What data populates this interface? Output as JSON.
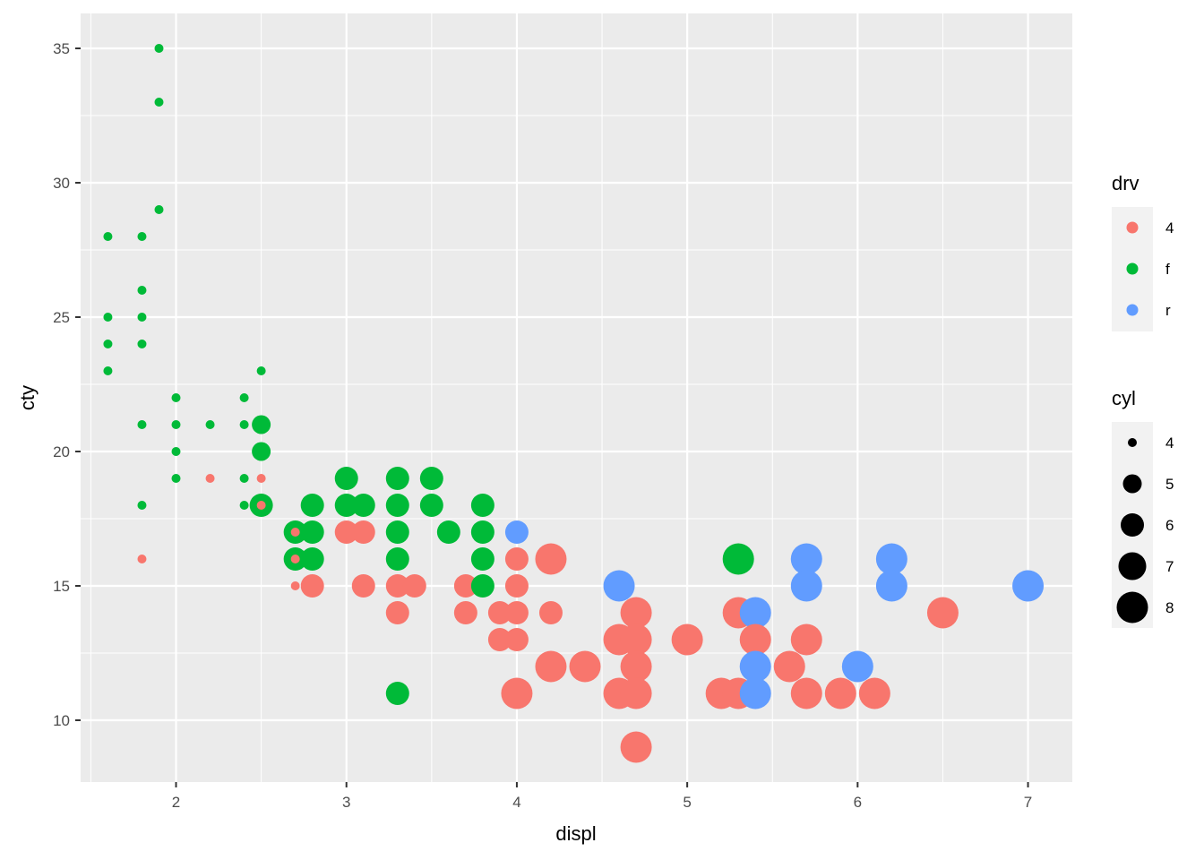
{
  "chart_data": {
    "type": "scatter",
    "xlabel": "displ",
    "ylabel": "cty",
    "xlim": [
      1.44,
      7.26
    ],
    "ylim": [
      7.7,
      36.3
    ],
    "x_ticks": [
      2,
      3,
      4,
      5,
      6,
      7
    ],
    "y_ticks": [
      10,
      15,
      20,
      25,
      30,
      35
    ],
    "x_tick_labels": [
      "2",
      "3",
      "4",
      "5",
      "6",
      "7"
    ],
    "y_tick_labels": [
      "10",
      "15",
      "20",
      "25",
      "30",
      "35"
    ],
    "grid": true,
    "panel_background": "#ebebeb",
    "legend_position": "right",
    "color": {
      "title": "drv",
      "levels": [
        {
          "label": "4",
          "color": "#F8766D"
        },
        {
          "label": "f",
          "color": "#00BA38"
        },
        {
          "label": "r",
          "color": "#619CFF"
        }
      ]
    },
    "size": {
      "title": "cyl",
      "levels": [
        {
          "label": "4",
          "value": 4
        },
        {
          "label": "5",
          "value": 5
        },
        {
          "label": "6",
          "value": 6
        },
        {
          "label": "7",
          "value": 7
        },
        {
          "label": "8",
          "value": 8
        }
      ]
    },
    "points": [
      {
        "x": 1.6,
        "y": 28,
        "drv": "f",
        "cyl": 4
      },
      {
        "x": 1.6,
        "y": 25,
        "drv": "f",
        "cyl": 4
      },
      {
        "x": 1.6,
        "y": 24,
        "drv": "f",
        "cyl": 4
      },
      {
        "x": 1.6,
        "y": 23,
        "drv": "f",
        "cyl": 4
      },
      {
        "x": 1.8,
        "y": 28,
        "drv": "f",
        "cyl": 4
      },
      {
        "x": 1.8,
        "y": 26,
        "drv": "f",
        "cyl": 4
      },
      {
        "x": 1.8,
        "y": 25,
        "drv": "f",
        "cyl": 4
      },
      {
        "x": 1.8,
        "y": 24,
        "drv": "f",
        "cyl": 4
      },
      {
        "x": 1.8,
        "y": 21,
        "drv": "f",
        "cyl": 4
      },
      {
        "x": 1.8,
        "y": 18,
        "drv": "f",
        "cyl": 4
      },
      {
        "x": 1.8,
        "y": 16,
        "drv": "4",
        "cyl": 4
      },
      {
        "x": 1.9,
        "y": 35,
        "drv": "f",
        "cyl": 4
      },
      {
        "x": 1.9,
        "y": 33,
        "drv": "f",
        "cyl": 4
      },
      {
        "x": 1.9,
        "y": 29,
        "drv": "f",
        "cyl": 4
      },
      {
        "x": 2.0,
        "y": 22,
        "drv": "f",
        "cyl": 4
      },
      {
        "x": 2.0,
        "y": 21,
        "drv": "f",
        "cyl": 4
      },
      {
        "x": 2.0,
        "y": 20,
        "drv": "f",
        "cyl": 4
      },
      {
        "x": 2.0,
        "y": 19,
        "drv": "f",
        "cyl": 4
      },
      {
        "x": 2.2,
        "y": 21,
        "drv": "f",
        "cyl": 4
      },
      {
        "x": 2.2,
        "y": 19,
        "drv": "4",
        "cyl": 4
      },
      {
        "x": 2.4,
        "y": 22,
        "drv": "f",
        "cyl": 4
      },
      {
        "x": 2.4,
        "y": 21,
        "drv": "f",
        "cyl": 4
      },
      {
        "x": 2.4,
        "y": 19,
        "drv": "f",
        "cyl": 4
      },
      {
        "x": 2.4,
        "y": 18,
        "drv": "f",
        "cyl": 4
      },
      {
        "x": 2.5,
        "y": 23,
        "drv": "f",
        "cyl": 4
      },
      {
        "x": 2.5,
        "y": 21,
        "drv": "f",
        "cyl": 5
      },
      {
        "x": 2.5,
        "y": 20,
        "drv": "f",
        "cyl": 5
      },
      {
        "x": 2.5,
        "y": 19,
        "drv": "4",
        "cyl": 4
      },
      {
        "x": 2.5,
        "y": 18,
        "drv": "f",
        "cyl": 6
      },
      {
        "x": 2.5,
        "y": 18,
        "drv": "4",
        "cyl": 4
      },
      {
        "x": 2.7,
        "y": 17,
        "drv": "f",
        "cyl": 6
      },
      {
        "x": 2.7,
        "y": 17,
        "drv": "4",
        "cyl": 4
      },
      {
        "x": 2.7,
        "y": 16,
        "drv": "f",
        "cyl": 6
      },
      {
        "x": 2.7,
        "y": 16,
        "drv": "4",
        "cyl": 4
      },
      {
        "x": 2.7,
        "y": 15,
        "drv": "4",
        "cyl": 4
      },
      {
        "x": 2.8,
        "y": 18,
        "drv": "f",
        "cyl": 6
      },
      {
        "x": 2.8,
        "y": 17,
        "drv": "f",
        "cyl": 6
      },
      {
        "x": 2.8,
        "y": 16,
        "drv": "f",
        "cyl": 6
      },
      {
        "x": 2.8,
        "y": 15,
        "drv": "4",
        "cyl": 6
      },
      {
        "x": 3.0,
        "y": 19,
        "drv": "f",
        "cyl": 6
      },
      {
        "x": 3.0,
        "y": 18,
        "drv": "f",
        "cyl": 6
      },
      {
        "x": 3.0,
        "y": 17,
        "drv": "4",
        "cyl": 6
      },
      {
        "x": 3.1,
        "y": 18,
        "drv": "f",
        "cyl": 6
      },
      {
        "x": 3.1,
        "y": 17,
        "drv": "4",
        "cyl": 6
      },
      {
        "x": 3.1,
        "y": 15,
        "drv": "4",
        "cyl": 6
      },
      {
        "x": 3.3,
        "y": 19,
        "drv": "f",
        "cyl": 6
      },
      {
        "x": 3.3,
        "y": 18,
        "drv": "f",
        "cyl": 6
      },
      {
        "x": 3.3,
        "y": 17,
        "drv": "f",
        "cyl": 6
      },
      {
        "x": 3.3,
        "y": 16,
        "drv": "f",
        "cyl": 6
      },
      {
        "x": 3.3,
        "y": 15,
        "drv": "4",
        "cyl": 6
      },
      {
        "x": 3.3,
        "y": 14,
        "drv": "4",
        "cyl": 6
      },
      {
        "x": 3.3,
        "y": 11,
        "drv": "f",
        "cyl": 6
      },
      {
        "x": 3.4,
        "y": 15,
        "drv": "4",
        "cyl": 6
      },
      {
        "x": 3.5,
        "y": 19,
        "drv": "f",
        "cyl": 6
      },
      {
        "x": 3.5,
        "y": 18,
        "drv": "f",
        "cyl": 6
      },
      {
        "x": 3.6,
        "y": 17,
        "drv": "f",
        "cyl": 6
      },
      {
        "x": 3.7,
        "y": 15,
        "drv": "4",
        "cyl": 6
      },
      {
        "x": 3.7,
        "y": 14,
        "drv": "4",
        "cyl": 6
      },
      {
        "x": 3.8,
        "y": 18,
        "drv": "f",
        "cyl": 6
      },
      {
        "x": 3.8,
        "y": 17,
        "drv": "f",
        "cyl": 6
      },
      {
        "x": 3.8,
        "y": 16,
        "drv": "f",
        "cyl": 6
      },
      {
        "x": 3.8,
        "y": 15,
        "drv": "f",
        "cyl": 6
      },
      {
        "x": 3.9,
        "y": 14,
        "drv": "4",
        "cyl": 6
      },
      {
        "x": 3.9,
        "y": 13,
        "drv": "4",
        "cyl": 6
      },
      {
        "x": 4.0,
        "y": 17,
        "drv": "r",
        "cyl": 6
      },
      {
        "x": 4.0,
        "y": 16,
        "drv": "4",
        "cyl": 6
      },
      {
        "x": 4.0,
        "y": 15,
        "drv": "4",
        "cyl": 6
      },
      {
        "x": 4.0,
        "y": 14,
        "drv": "4",
        "cyl": 6
      },
      {
        "x": 4.0,
        "y": 13,
        "drv": "4",
        "cyl": 6
      },
      {
        "x": 4.0,
        "y": 11,
        "drv": "4",
        "cyl": 8
      },
      {
        "x": 4.2,
        "y": 16,
        "drv": "4",
        "cyl": 8
      },
      {
        "x": 4.2,
        "y": 14,
        "drv": "4",
        "cyl": 6
      },
      {
        "x": 4.2,
        "y": 12,
        "drv": "4",
        "cyl": 8
      },
      {
        "x": 4.4,
        "y": 12,
        "drv": "4",
        "cyl": 8
      },
      {
        "x": 4.6,
        "y": 15,
        "drv": "r",
        "cyl": 8
      },
      {
        "x": 4.6,
        "y": 13,
        "drv": "4",
        "cyl": 8
      },
      {
        "x": 4.6,
        "y": 11,
        "drv": "4",
        "cyl": 8
      },
      {
        "x": 4.7,
        "y": 14,
        "drv": "4",
        "cyl": 8
      },
      {
        "x": 4.7,
        "y": 13,
        "drv": "4",
        "cyl": 8
      },
      {
        "x": 4.7,
        "y": 12,
        "drv": "4",
        "cyl": 8
      },
      {
        "x": 4.7,
        "y": 11,
        "drv": "4",
        "cyl": 8
      },
      {
        "x": 4.7,
        "y": 9,
        "drv": "4",
        "cyl": 8
      },
      {
        "x": 5.0,
        "y": 13,
        "drv": "4",
        "cyl": 8
      },
      {
        "x": 5.2,
        "y": 11,
        "drv": "4",
        "cyl": 8
      },
      {
        "x": 5.3,
        "y": 16,
        "drv": "f",
        "cyl": 8
      },
      {
        "x": 5.3,
        "y": 14,
        "drv": "4",
        "cyl": 8
      },
      {
        "x": 5.3,
        "y": 11,
        "drv": "4",
        "cyl": 8
      },
      {
        "x": 5.4,
        "y": 14,
        "drv": "r",
        "cyl": 8
      },
      {
        "x": 5.4,
        "y": 13,
        "drv": "4",
        "cyl": 8
      },
      {
        "x": 5.4,
        "y": 12,
        "drv": "r",
        "cyl": 8
      },
      {
        "x": 5.4,
        "y": 11,
        "drv": "r",
        "cyl": 8
      },
      {
        "x": 5.6,
        "y": 12,
        "drv": "4",
        "cyl": 8
      },
      {
        "x": 5.7,
        "y": 16,
        "drv": "r",
        "cyl": 8
      },
      {
        "x": 5.7,
        "y": 15,
        "drv": "r",
        "cyl": 8
      },
      {
        "x": 5.7,
        "y": 13,
        "drv": "4",
        "cyl": 8
      },
      {
        "x": 5.7,
        "y": 11,
        "drv": "4",
        "cyl": 8
      },
      {
        "x": 5.9,
        "y": 11,
        "drv": "4",
        "cyl": 8
      },
      {
        "x": 6.0,
        "y": 12,
        "drv": "r",
        "cyl": 8
      },
      {
        "x": 6.1,
        "y": 11,
        "drv": "4",
        "cyl": 8
      },
      {
        "x": 6.2,
        "y": 16,
        "drv": "r",
        "cyl": 8
      },
      {
        "x": 6.2,
        "y": 15,
        "drv": "r",
        "cyl": 8
      },
      {
        "x": 6.5,
        "y": 14,
        "drv": "4",
        "cyl": 8
      },
      {
        "x": 7.0,
        "y": 15,
        "drv": "r",
        "cyl": 8
      }
    ]
  }
}
